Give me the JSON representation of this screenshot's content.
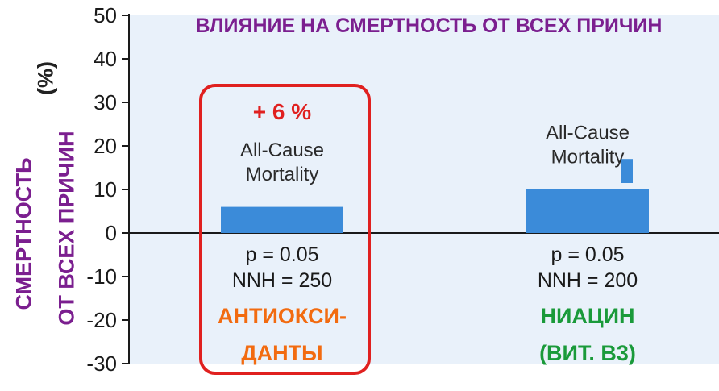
{
  "chart_data": {
    "type": "bar",
    "title": "ВЛИЯНИЕ НА СМЕРТНОСТЬ ОТ ВСЕХ ПРИЧИН",
    "ylabel_line1": "СМЕРТНОСТЬ",
    "ylabel_line2": "ОТ ВСЕХ ПРИЧИН",
    "yunit": "(%)",
    "ylim": [
      -30,
      50
    ],
    "yticks": [
      50,
      40,
      30,
      20,
      10,
      0,
      -10,
      -20,
      -30
    ],
    "grid": false,
    "categories": [
      "АНТИОКСИ-ДАНТЫ",
      "НИАЦИН (ВИТ. В3)"
    ],
    "series": [
      {
        "values": [
          6,
          10
        ]
      }
    ],
    "bars": [
      {
        "value": 6,
        "highlight": "+ 6 %",
        "label_lines": [
          "All-Cause",
          "Mortality"
        ],
        "stats_lines": [
          "p = 0.05",
          "NNH = 250"
        ],
        "category_lines": [
          "АНТИОКСИ-",
          "ДАНТЫ"
        ],
        "category_color": "#f26b10",
        "boxed": true
      },
      {
        "value": 10,
        "error_upper": 17,
        "label_lines": [
          "All-Cause",
          "Mortality"
        ],
        "stats_lines": [
          "p = 0.05",
          "NNH = 200"
        ],
        "category_lines": [
          "НИАЦИН",
          "(ВИТ. В3)"
        ],
        "category_color": "#1a9a3a",
        "boxed": false
      }
    ],
    "colors": {
      "bar": "#3b8bd9",
      "plot_bg": "#e9f1fa",
      "title": "#7b1f8f",
      "highlight": "#e0201f",
      "box": "#e0201f",
      "axis": "#1a1a1a"
    }
  }
}
